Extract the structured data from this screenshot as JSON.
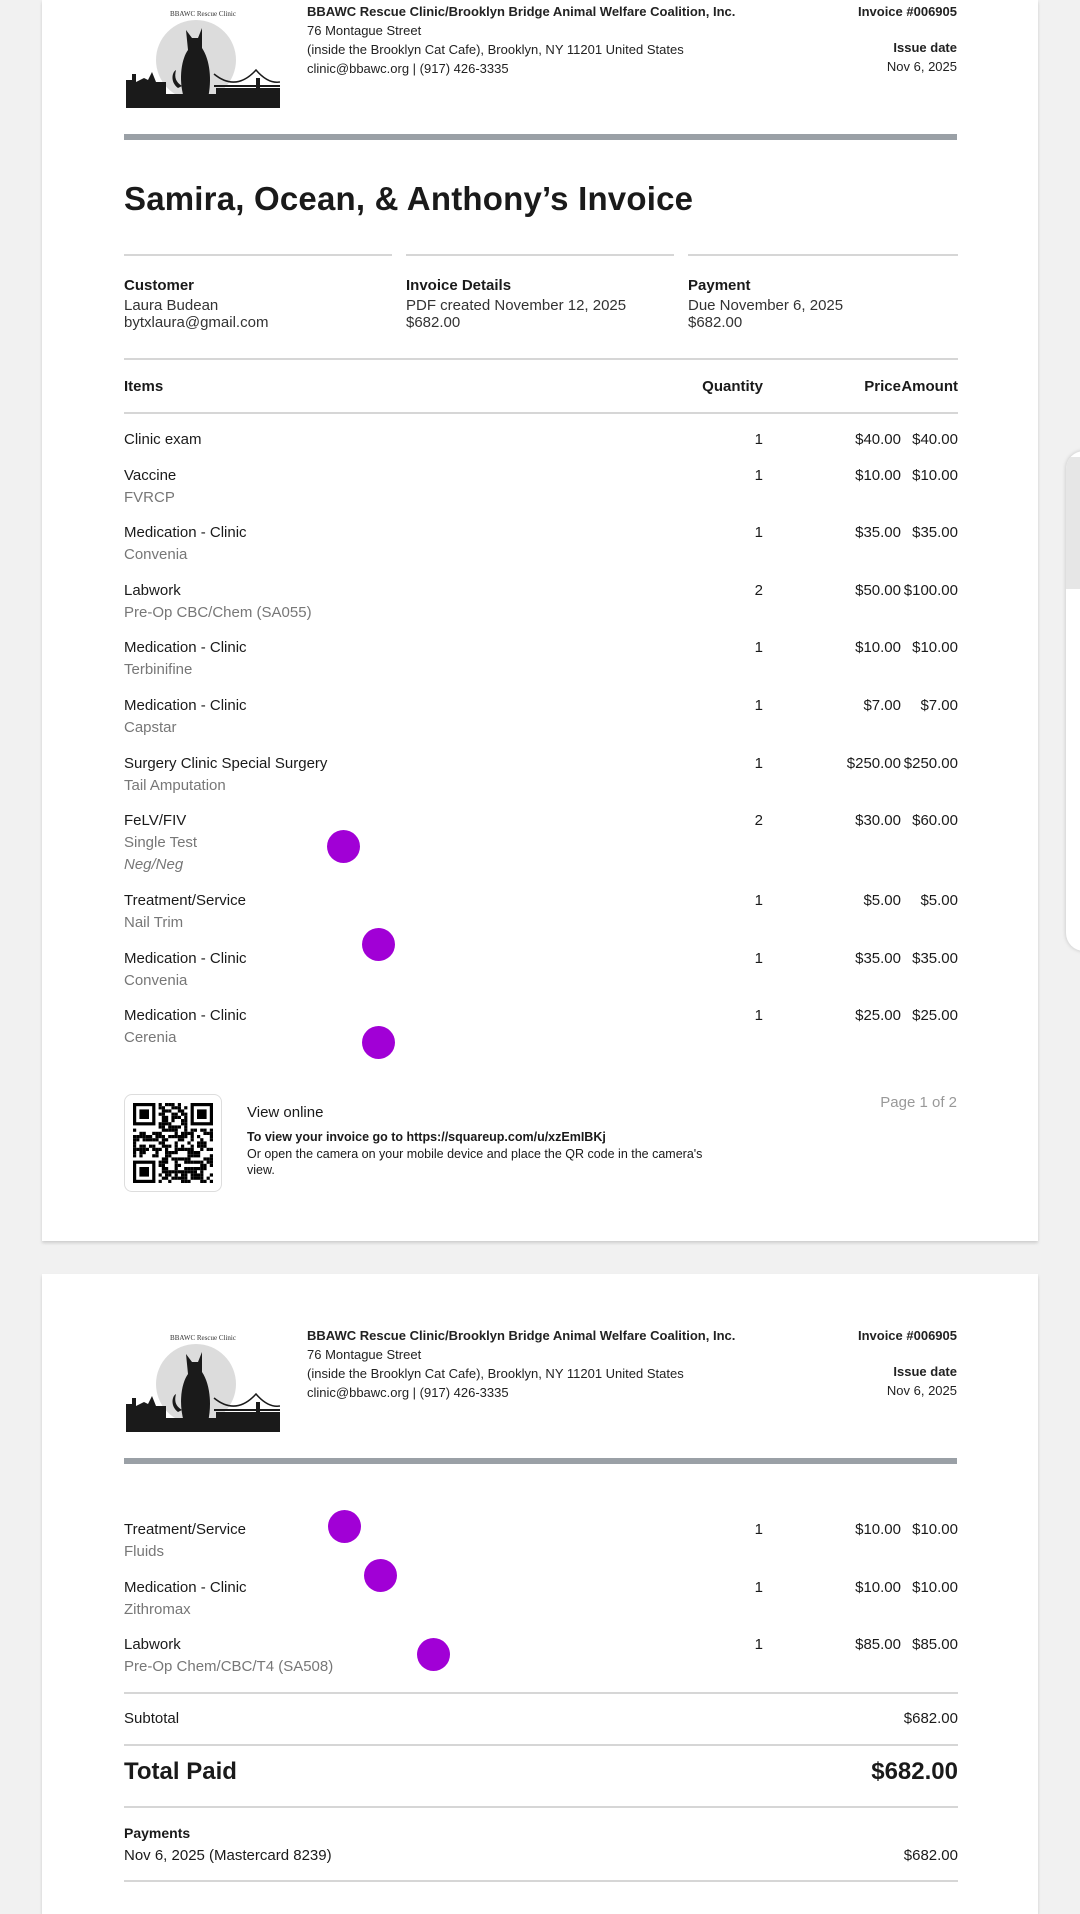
{
  "header": {
    "logo_text": "BBAWC Rescue Clinic",
    "org_name": "BBAWC Rescue Clinic/Brooklyn Bridge Animal Welfare Coalition, Inc.",
    "address1": "76 Montague Street",
    "address2": "(inside the Brooklyn Cat Cafe), Brooklyn, NY 11201 United States",
    "contact": "clinic@bbawc.org | (917) 426-3335",
    "invoice_number": "Invoice #006905",
    "issue_date_label": "Issue date",
    "issue_date": "Nov 6, 2025"
  },
  "title": "Samira, Ocean, & Anthony’s Invoice",
  "info": {
    "customer": {
      "label": "Customer",
      "name": "Laura Budean",
      "email": "bytxlaura@gmail.com"
    },
    "details": {
      "label": "Invoice Details",
      "line1": "PDF created November 12, 2025",
      "line2": "$682.00"
    },
    "payment": {
      "label": "Payment",
      "line1": "Due November 6, 2025",
      "line2": "$682.00"
    }
  },
  "columns": {
    "items": "Items",
    "quantity": "Quantity",
    "price": "Price",
    "amount": "Amount"
  },
  "items_page1": [
    {
      "name": "Clinic exam",
      "sub": "",
      "qty": "1",
      "price": "$40.00",
      "amount": "$40.00"
    },
    {
      "name": "Vaccine",
      "sub": "FVRCP",
      "qty": "1",
      "price": "$10.00",
      "amount": "$10.00"
    },
    {
      "name": "Medication - Clinic",
      "sub": "Convenia",
      "qty": "1",
      "price": "$35.00",
      "amount": "$35.00"
    },
    {
      "name": "Labwork",
      "sub": "Pre-Op CBC/Chem (SA055)",
      "qty": "2",
      "price": "$50.00",
      "amount": "$100.00"
    },
    {
      "name": "Medication - Clinic",
      "sub": "Terbinifine",
      "qty": "1",
      "price": "$10.00",
      "amount": "$10.00"
    },
    {
      "name": "Medication - Clinic",
      "sub": "Capstar",
      "qty": "1",
      "price": "$7.00",
      "amount": "$7.00"
    },
    {
      "name": "Surgery Clinic Special Surgery",
      "sub": "Tail Amputation",
      "qty": "1",
      "price": "$250.00",
      "amount": "$250.00"
    },
    {
      "name": "FeLV/FIV",
      "sub": "Single Test",
      "note": "Neg/Neg",
      "qty": "2",
      "price": "$30.00",
      "amount": "$60.00"
    },
    {
      "name": "Treatment/Service",
      "sub": "Nail Trim",
      "qty": "1",
      "price": "$5.00",
      "amount": "$5.00"
    },
    {
      "name": "Medication - Clinic",
      "sub": "Convenia",
      "qty": "1",
      "price": "$35.00",
      "amount": "$35.00"
    },
    {
      "name": "Medication - Clinic",
      "sub": "Cerenia",
      "qty": "1",
      "price": "$25.00",
      "amount": "$25.00"
    }
  ],
  "items_page2": [
    {
      "name": "Treatment/Service",
      "sub": "Fluids",
      "qty": "1",
      "price": "$10.00",
      "amount": "$10.00"
    },
    {
      "name": "Medication - Clinic",
      "sub": "Zithromax",
      "qty": "1",
      "price": "$10.00",
      "amount": "$10.00"
    },
    {
      "name": "Labwork",
      "sub": "Pre-Op Chem/CBC/T4 (SA508)",
      "qty": "1",
      "price": "$85.00",
      "amount": "$85.00"
    }
  ],
  "view_online": {
    "title": "View online",
    "line1": "To view your invoice go to https://squareup.com/u/xzEmIBKj",
    "line2": "Or open the camera on your mobile device and place the QR code in the camera's",
    "line3": "view."
  },
  "page_indicator": "Page 1 of 2",
  "totals": {
    "subtotal_label": "Subtotal",
    "subtotal": "$682.00",
    "total_label": "Total Paid",
    "total": "$682.00",
    "payments_label": "Payments",
    "payment_line": "Nov 6, 2025 (Mastercard 8239)",
    "payment_amount": "$682.00"
  },
  "colors": {
    "marker": "#a100d6",
    "header_bar": "#9aa0a6"
  }
}
